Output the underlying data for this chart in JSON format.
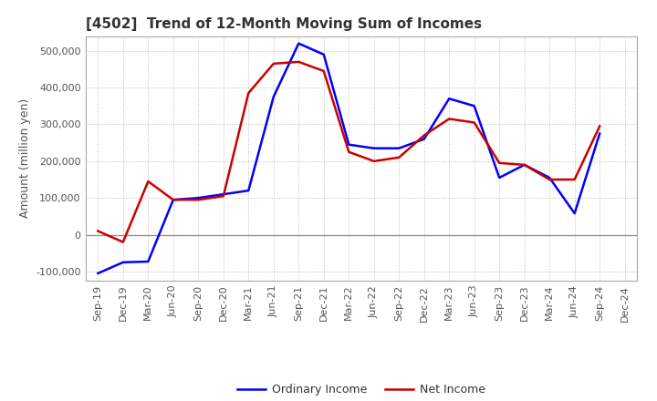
{
  "title": "[4502]  Trend of 12-Month Moving Sum of Incomes",
  "ylabel": "Amount (million yen)",
  "ylim": [
    -125000,
    540000
  ],
  "yticks": [
    -100000,
    0,
    100000,
    200000,
    300000,
    400000,
    500000
  ],
  "background_color": "#ffffff",
  "plot_bg_color": "#ffffff",
  "grid_color": "#bbbbbb",
  "labels": [
    "Sep-19",
    "Dec-19",
    "Mar-20",
    "Jun-20",
    "Sep-20",
    "Dec-20",
    "Mar-21",
    "Jun-21",
    "Sep-21",
    "Dec-21",
    "Mar-22",
    "Jun-22",
    "Sep-22",
    "Dec-22",
    "Mar-23",
    "Jun-23",
    "Sep-23",
    "Dec-23",
    "Mar-24",
    "Jun-24",
    "Sep-24",
    "Dec-24"
  ],
  "ordinary_income": [
    -105000,
    -75000,
    -73000,
    95000,
    100000,
    110000,
    120000,
    375000,
    520000,
    490000,
    245000,
    235000,
    235000,
    260000,
    370000,
    350000,
    155000,
    190000,
    155000,
    58000,
    275000,
    null
  ],
  "net_income": [
    10000,
    -20000,
    145000,
    95000,
    95000,
    105000,
    385000,
    465000,
    470000,
    445000,
    225000,
    200000,
    210000,
    270000,
    315000,
    305000,
    195000,
    190000,
    150000,
    150000,
    295000,
    null
  ],
  "ordinary_color": "#0000ff",
  "net_color": "#cc0000",
  "line_width": 1.8,
  "title_color": "#333333",
  "tick_color": "#555555",
  "label_fontsize": 8,
  "title_fontsize": 11,
  "ylabel_fontsize": 9
}
